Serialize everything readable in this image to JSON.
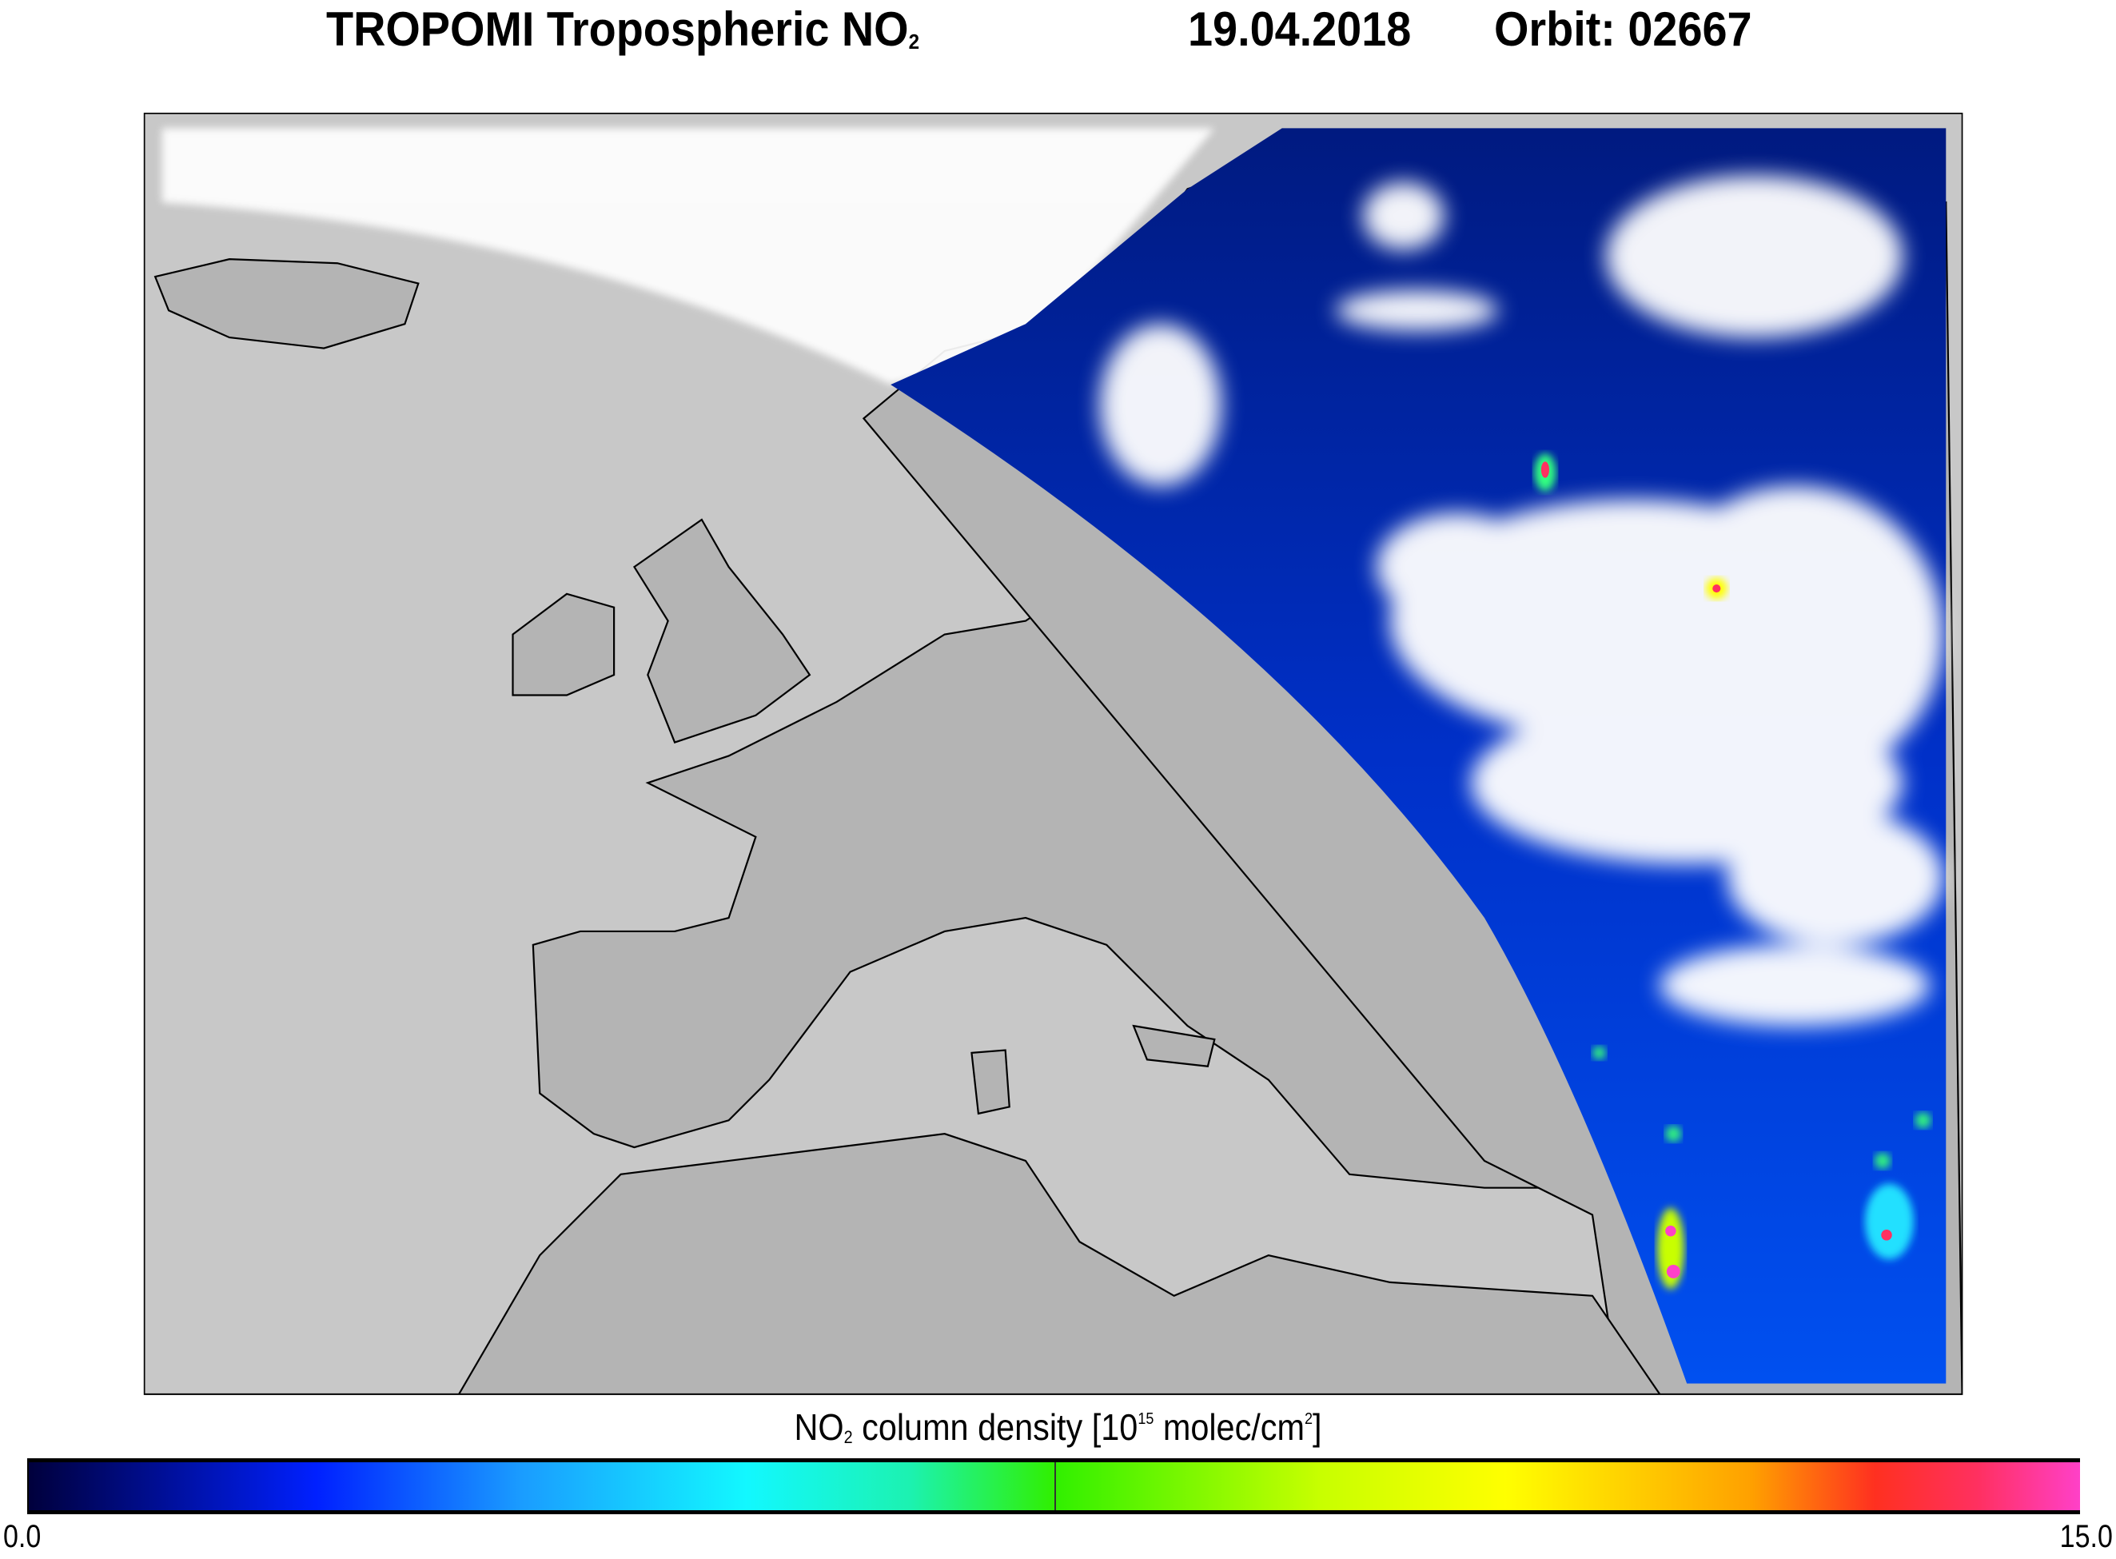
{
  "header": {
    "title": "TROPOMI Tropospheric NO",
    "title_subscript": "2",
    "date": "19.04.2018",
    "orbit": "Orbit: 02667"
  },
  "colorbar": {
    "label_prefix": "NO",
    "label_subscript": "2",
    "label_middle": " column density [10",
    "label_exponent": "15",
    "label_unit": " molec/cm",
    "label_unit_exponent": "2",
    "label_end": "]",
    "min_label": "0.0",
    "max_label": "15.0",
    "min": 0,
    "max": 15,
    "colors": [
      "#00003c",
      "#0020ff",
      "#12f8ff",
      "#30f000",
      "#ffff00",
      "#ff3020",
      "#ff40c8"
    ]
  },
  "map": {
    "region": "Europe / Mediterranean",
    "no_data_color": "#c8c8c8",
    "land_color": "#b4b4b4",
    "cloud_color": "#ffffff"
  }
}
